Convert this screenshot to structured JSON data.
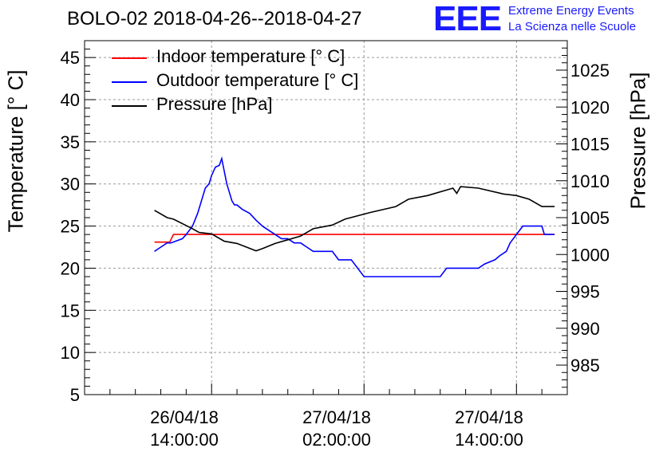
{
  "chart_data": {
    "type": "line",
    "title": "BOLO-02 2018-04-26--2018-04-27",
    "ylabel_left": "Temperature [° C]",
    "ylabel_right": "Pressure [hPa]",
    "ylim_left": [
      5,
      47
    ],
    "ylim_right": [
      981,
      1029
    ],
    "yticks_left": [
      5,
      10,
      15,
      20,
      25,
      30,
      35,
      40,
      45
    ],
    "yticks_right": [
      985,
      990,
      995,
      1000,
      1005,
      1010,
      1015,
      1020,
      1025
    ],
    "x_unit": "hours from 2018-04-26 00:00",
    "xlim": [
      4.0,
      42.0
    ],
    "xticks": [
      {
        "x": 14,
        "date": "26/04/18",
        "time": "14:00:00"
      },
      {
        "x": 26,
        "date": "27/04/18",
        "time": "02:00:00"
      },
      {
        "x": 38,
        "date": "27/04/18",
        "time": "14:00:00"
      }
    ],
    "grid": true,
    "legend_position": "top-left",
    "series": [
      {
        "name": "Indoor temperature [° C]",
        "color": "#ff0000",
        "axis": "left",
        "x": [
          9.5,
          10.7,
          11.0,
          12.0,
          41.0
        ],
        "values": [
          23.1,
          23.1,
          24.0,
          24.0,
          24.0
        ]
      },
      {
        "name": "Outdoor temperature [° C]",
        "color": "#0000ff",
        "axis": "left",
        "x": [
          9.5,
          10.0,
          10.5,
          10.8,
          11.7,
          12.0,
          12.5,
          12.9,
          13.2,
          13.5,
          13.8,
          14.0,
          14.3,
          14.6,
          14.8,
          15.0,
          15.2,
          15.4,
          15.6,
          15.8,
          16.0,
          16.4,
          17.0,
          17.5,
          18.0,
          18.5,
          19.0,
          19.5,
          20.0,
          20.5,
          21.0,
          21.5,
          22.0,
          23.5,
          24.0,
          25.0,
          26.0,
          32.0,
          32.5,
          35.0,
          35.5,
          36.3,
          36.7,
          37.2,
          37.5,
          38.0,
          38.5,
          40.0,
          40.2,
          41.0
        ],
        "values": [
          22.0,
          22.5,
          23.0,
          23.0,
          23.5,
          24.0,
          25.0,
          26.5,
          28.0,
          29.5,
          30.0,
          31.0,
          32.0,
          32.2,
          33.0,
          31.5,
          30.0,
          29.0,
          28.0,
          27.5,
          27.5,
          27.0,
          26.5,
          25.7,
          25.0,
          24.5,
          24.0,
          23.5,
          23.5,
          23.0,
          23.0,
          22.5,
          22.0,
          22.0,
          21.0,
          21.0,
          19.0,
          19.0,
          20.0,
          20.0,
          20.5,
          21.0,
          21.5,
          22.0,
          23.0,
          24.0,
          25.0,
          25.0,
          24.0,
          24.0
        ]
      },
      {
        "name": "Pressure [hPa]",
        "color": "#000000",
        "axis": "right",
        "x": [
          9.5,
          10.5,
          11.0,
          12.5,
          13.0,
          14.0,
          15.0,
          16.0,
          17.5,
          18.0,
          19.0,
          20.0,
          21.0,
          22.0,
          23.5,
          24.5,
          26.5,
          28.5,
          29.5,
          31.0,
          33.0,
          33.3,
          33.6,
          35.0,
          37.0,
          38.0,
          39.0,
          40.0,
          41.0
        ],
        "values": [
          1006.0,
          1005.0,
          1004.8,
          1003.5,
          1003.0,
          1002.8,
          1001.8,
          1001.5,
          1000.5,
          1000.8,
          1001.5,
          1002.0,
          1002.5,
          1003.5,
          1004.0,
          1004.8,
          1005.7,
          1006.5,
          1007.5,
          1008.0,
          1009.0,
          1008.3,
          1009.2,
          1009.0,
          1008.2,
          1008.0,
          1007.5,
          1006.5,
          1006.5
        ]
      }
    ]
  },
  "branding": {
    "logo_text": "EEE",
    "line1": "Extreme Energy Events",
    "line2": "La Scienza nelle Scuole"
  }
}
